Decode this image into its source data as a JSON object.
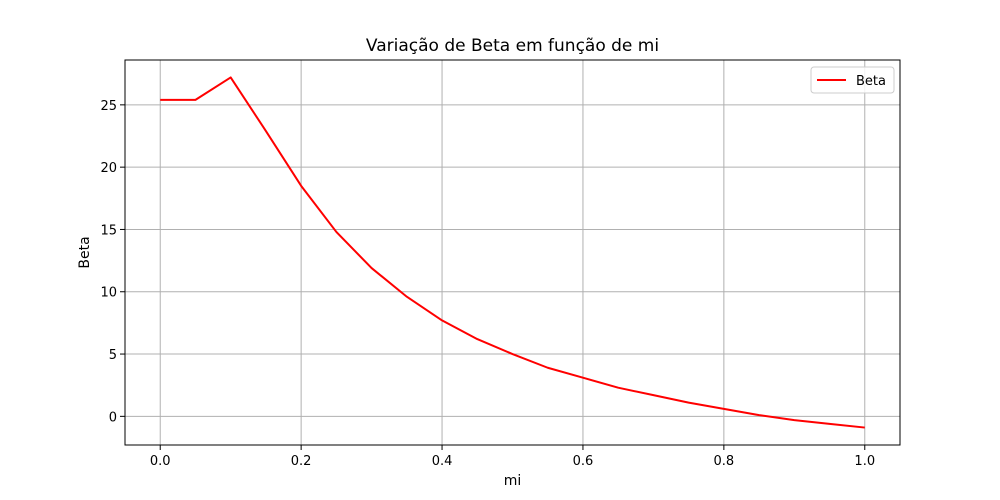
{
  "chart_data": {
    "type": "line",
    "title": "Variação de Beta em função de mi",
    "xlabel": "mi",
    "ylabel": "Beta",
    "xlim": [
      -0.05,
      1.05
    ],
    "ylim": [
      -2.3,
      28.6
    ],
    "xticks": [
      0.0,
      0.2,
      0.4,
      0.6,
      0.8,
      1.0
    ],
    "xtick_labels": [
      "0.0",
      "0.2",
      "0.4",
      "0.6",
      "0.8",
      "1.0"
    ],
    "yticks": [
      0,
      5,
      10,
      15,
      20,
      25
    ],
    "ytick_labels": [
      "0",
      "5",
      "10",
      "15",
      "20",
      "25"
    ],
    "grid": true,
    "legend_position": "top-right",
    "series": [
      {
        "name": "Beta",
        "color": "#ff0000",
        "x": [
          0.0,
          0.05,
          0.1,
          0.15,
          0.2,
          0.25,
          0.3,
          0.35,
          0.4,
          0.45,
          0.5,
          0.55,
          0.6,
          0.65,
          0.7,
          0.75,
          0.8,
          0.85,
          0.9,
          0.95,
          1.0
        ],
        "y": [
          25.4,
          25.4,
          27.2,
          22.9,
          18.5,
          14.8,
          11.9,
          9.6,
          7.7,
          6.2,
          5.0,
          3.9,
          3.1,
          2.3,
          1.7,
          1.1,
          0.6,
          0.1,
          -0.3,
          -0.6,
          -0.9
        ]
      }
    ]
  }
}
